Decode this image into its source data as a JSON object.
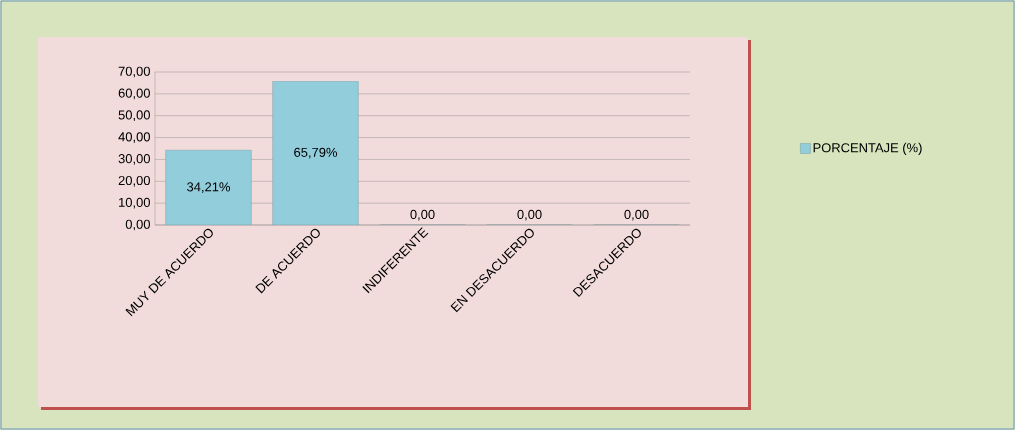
{
  "chart_data": {
    "type": "bar",
    "categories": [
      "MUY DE ACUERDO",
      "DE ACUERDO",
      "INDIFERENTE",
      "EN DESACUERDO",
      "DESACUERDO"
    ],
    "series": [
      {
        "name": "PORCENTAJE (%)",
        "color": "#92cddc",
        "values": [
          34.21,
          65.79,
          0,
          0,
          0
        ],
        "value_labels": [
          "34,21%",
          "65,79%",
          "0,00",
          "0,00",
          "0,00"
        ]
      }
    ],
    "ylim": [
      0,
      70
    ],
    "yticks": [
      {
        "value": 0,
        "label": "0,00"
      },
      {
        "value": 10,
        "label": "10,00"
      },
      {
        "value": 20,
        "label": "20,00"
      },
      {
        "value": 30,
        "label": "30,00"
      },
      {
        "value": 40,
        "label": "40,00"
      },
      {
        "value": 50,
        "label": "50,00"
      },
      {
        "value": 60,
        "label": "60,00"
      },
      {
        "value": 70,
        "label": "70,00"
      }
    ],
    "grid": "y",
    "legend": "right"
  }
}
